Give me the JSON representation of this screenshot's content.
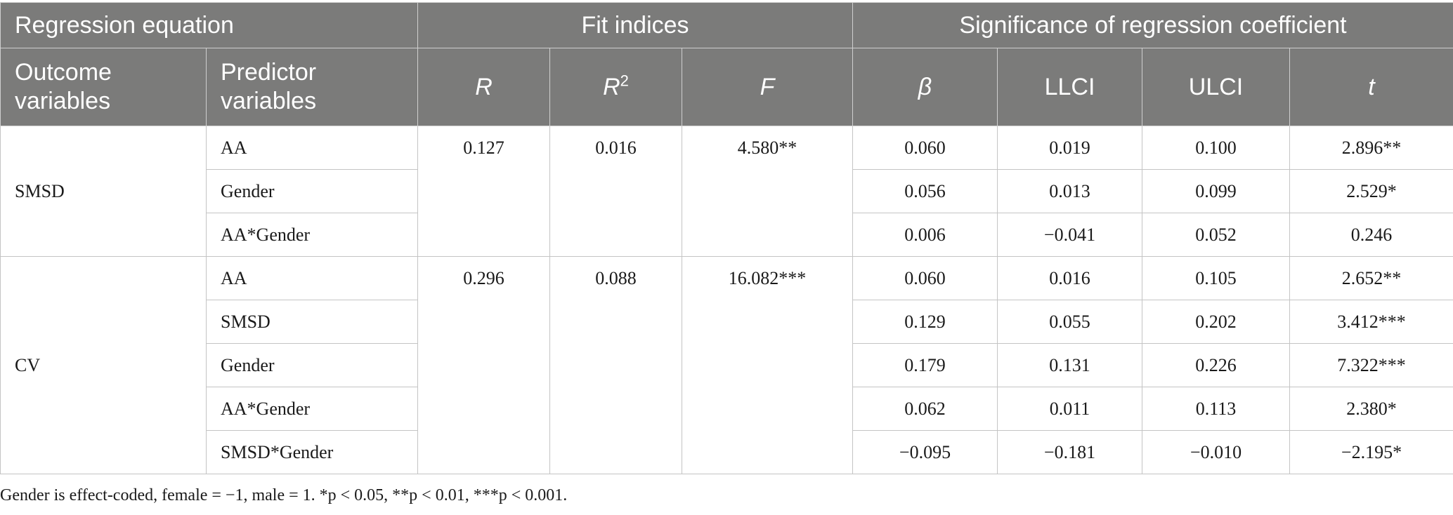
{
  "table": {
    "group_headers": {
      "regression_equation": "Regression equation",
      "fit_indices": "Fit indices",
      "significance": "Significance of regression coefficient"
    },
    "column_headers": {
      "outcome_line1": "Outcome",
      "outcome_line2": "variables",
      "predictor_line1": "Predictor",
      "predictor_line2": "variables",
      "R": "R",
      "R2_base": "R",
      "R2_sup": "2",
      "F": "F",
      "beta": "β",
      "LLCI": "LLCI",
      "ULCI": "ULCI",
      "t": "t"
    },
    "groups": [
      {
        "outcome": "SMSD",
        "R": "0.127",
        "R2": "0.016",
        "F": "4.580**",
        "rows": [
          {
            "predictor": "AA",
            "beta": "0.060",
            "llci": "0.019",
            "ulci": "0.100",
            "t": "2.896**"
          },
          {
            "predictor": "Gender",
            "beta": "0.056",
            "llci": "0.013",
            "ulci": "0.099",
            "t": "2.529*"
          },
          {
            "predictor": "AA*Gender",
            "beta": "0.006",
            "llci": "−0.041",
            "ulci": "0.052",
            "t": "0.246"
          }
        ]
      },
      {
        "outcome": "CV",
        "R": "0.296",
        "R2": "0.088",
        "F": "16.082***",
        "rows": [
          {
            "predictor": "AA",
            "beta": "0.060",
            "llci": "0.016",
            "ulci": "0.105",
            "t": "2.652**"
          },
          {
            "predictor": "SMSD",
            "beta": "0.129",
            "llci": "0.055",
            "ulci": "0.202",
            "t": "3.412***"
          },
          {
            "predictor": "Gender",
            "beta": "0.179",
            "llci": "0.131",
            "ulci": "0.226",
            "t": "7.322***"
          },
          {
            "predictor": "AA*Gender",
            "beta": "0.062",
            "llci": "0.011",
            "ulci": "0.113",
            "t": "2.380*"
          },
          {
            "predictor": "SMSD*Gender",
            "beta": "−0.095",
            "llci": "−0.181",
            "ulci": "−0.010",
            "t": "−2.195*"
          }
        ]
      }
    ]
  },
  "footnote": "Gender is effect-coded, female = −1, male = 1. *p < 0.05, **p < 0.01, ***p < 0.001."
}
